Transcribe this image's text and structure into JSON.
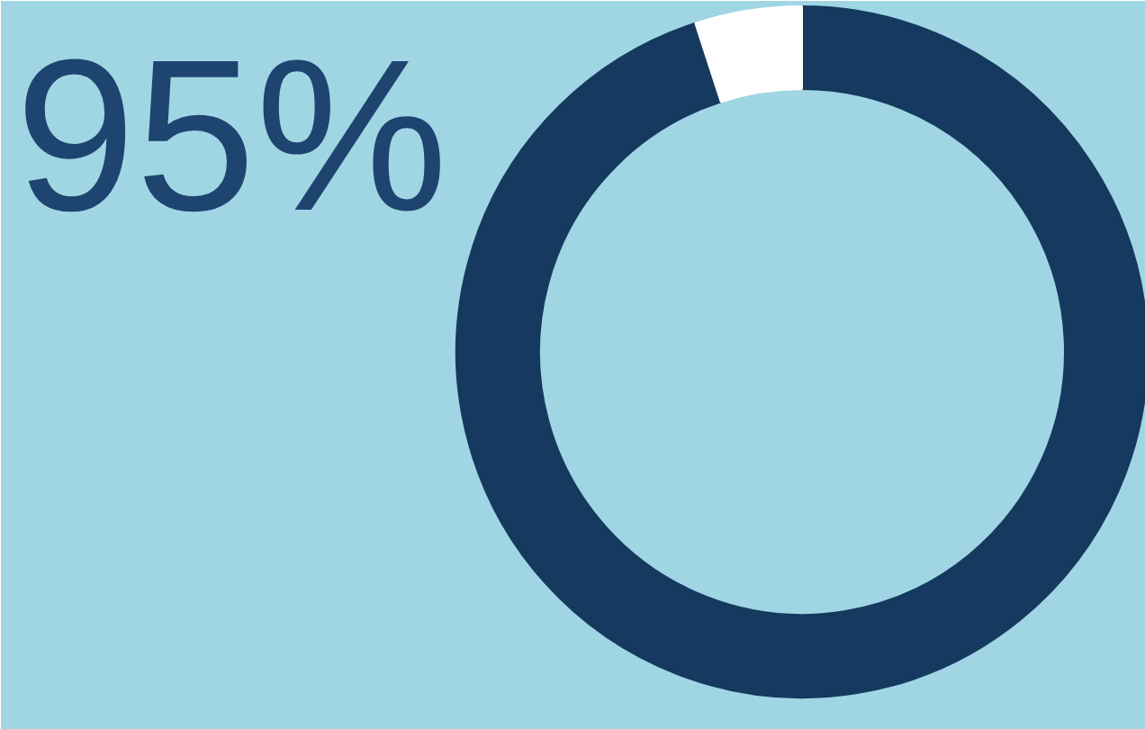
{
  "chart_data": {
    "type": "donut",
    "title": "95%",
    "categories": [
      null,
      null
    ],
    "values": [
      95,
      5
    ],
    "colors": [
      "#163a5f",
      "#ffffff"
    ]
  }
}
